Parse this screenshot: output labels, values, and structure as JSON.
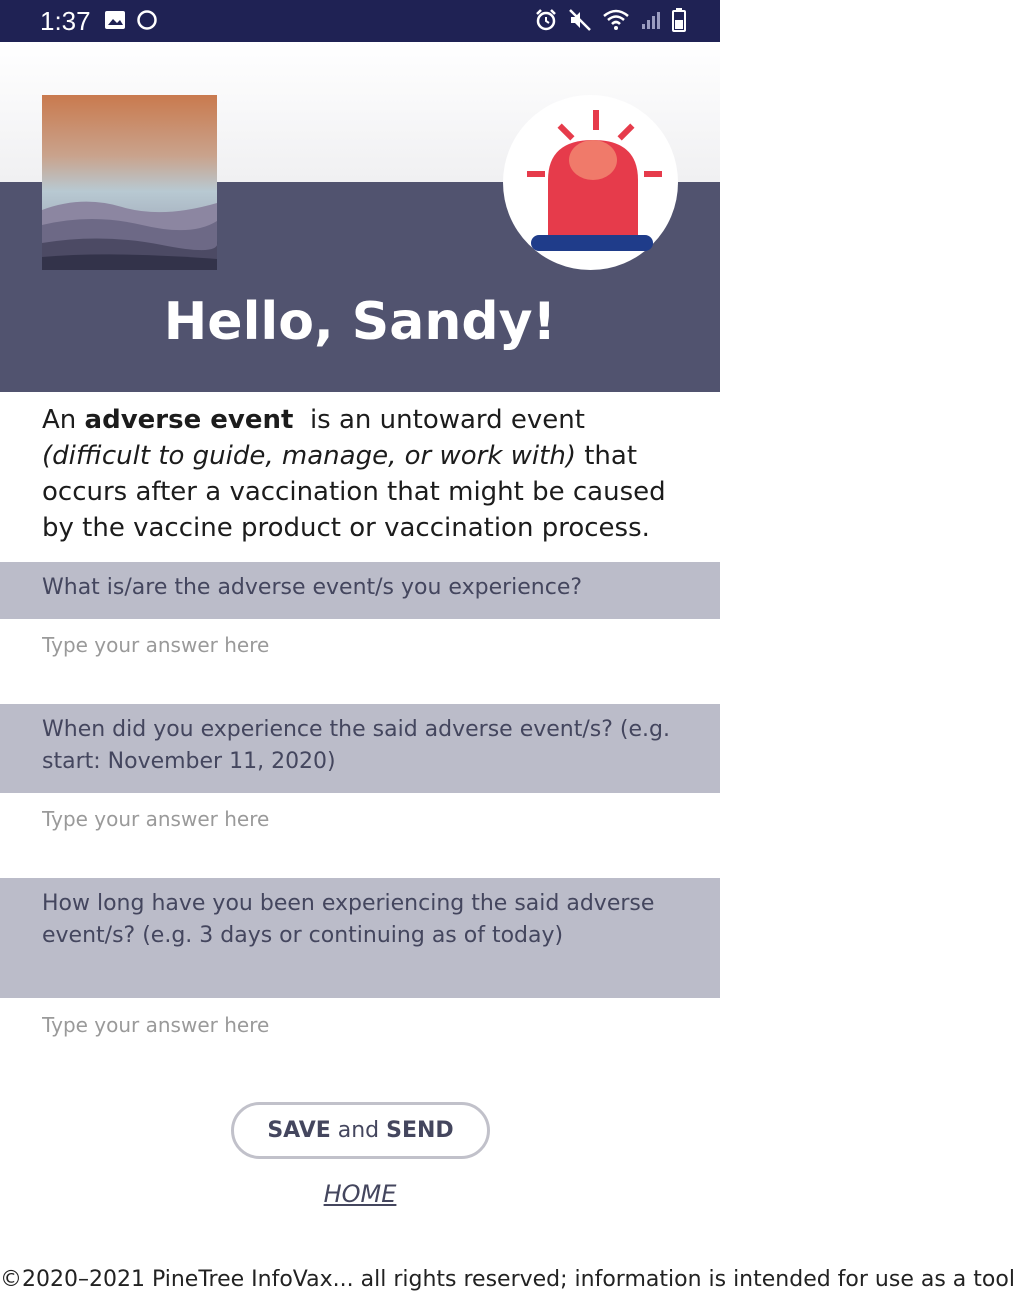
{
  "status_bar": {
    "time": "1:37",
    "left_icons": [
      "image-icon",
      "circle-icon"
    ],
    "right_icons": [
      "alarm-icon",
      "mute-icon",
      "wifi-icon",
      "signal-icon",
      "battery-icon"
    ]
  },
  "header": {
    "greeting": "Hello, Sandy!"
  },
  "definition": {
    "prefix": "An ",
    "term": "adverse event",
    "middle": "  is an untoward event ",
    "italic": "(difficult to guide, manage, or work with)",
    "suffix": " that occurs after a vaccination that might be caused by the vaccine product or vaccination process."
  },
  "questions": [
    {
      "label": "What is/are the adverse event/s you experience?",
      "placeholder": "Type your answer here"
    },
    {
      "label": "When did you experience the said adverse event/s? (e.g. start: November 11, 2020)",
      "placeholder": "Type your answer here"
    },
    {
      "label": "How long have you been experiencing the said adverse event/s? (e.g. 3 days or continuing as of today)",
      "placeholder": "Type your answer here"
    }
  ],
  "actions": {
    "save_part1": "SAVE",
    "save_part2": " and ",
    "save_part3": "SEND",
    "home": "HOME"
  },
  "footer": {
    "text": "©2020–2021 PineTree InfoVax... all rights reserved; information is intended for use as a tool"
  },
  "colors": {
    "status_bar": "#1f2254",
    "header_band": "#51536f",
    "question_band": "#bbbcc9",
    "alarm_red": "#e63b4b",
    "alarm_base": "#1f3c8a"
  }
}
